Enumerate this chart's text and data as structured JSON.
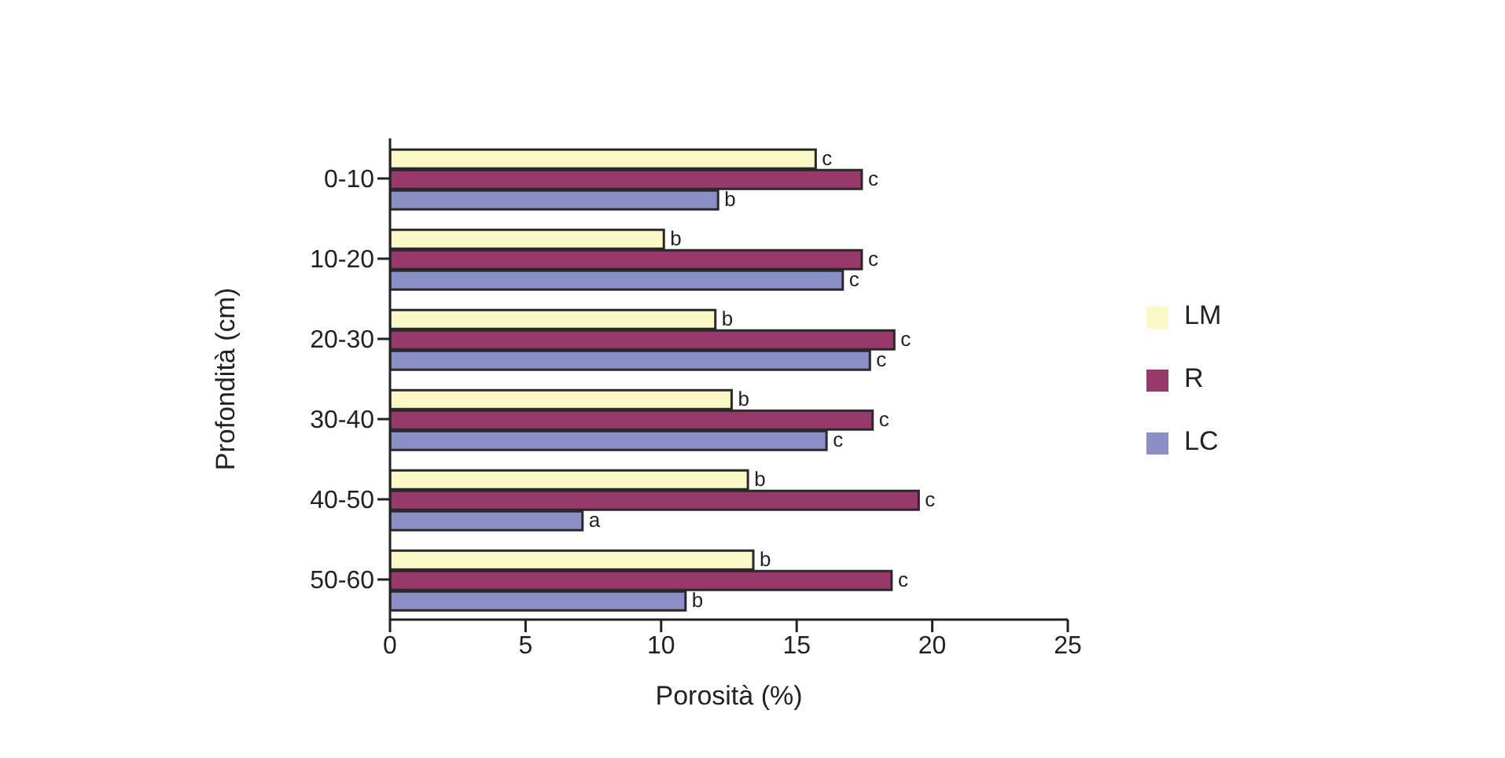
{
  "chart_data": {
    "type": "bar",
    "orientation": "horizontal",
    "xlabel": "Porosità (%)",
    "ylabel": "Profondità (cm)",
    "categories": [
      "0-10",
      "10-20",
      "20-30",
      "30-40",
      "40-50",
      "50-60"
    ],
    "series": [
      {
        "name": "LM",
        "color": "#fbf8c8",
        "values": [
          15.7,
          10.1,
          12.0,
          12.6,
          13.2,
          13.4
        ],
        "value_labels": [
          "c",
          "b",
          "b",
          "b",
          "b",
          "b"
        ]
      },
      {
        "name": "R",
        "color": "#973a6b",
        "values": [
          17.4,
          17.4,
          18.6,
          17.8,
          19.5,
          18.5
        ],
        "value_labels": [
          "c",
          "c",
          "c",
          "c",
          "c",
          "c"
        ]
      },
      {
        "name": "LC",
        "color": "#8a8fc6",
        "values": [
          12.1,
          16.7,
          17.7,
          16.1,
          7.1,
          10.9
        ],
        "value_labels": [
          "b",
          "c",
          "c",
          "c",
          "a",
          "b"
        ]
      }
    ],
    "xlim": [
      0,
      25
    ],
    "xticks": [
      0,
      5,
      10,
      15,
      20,
      25
    ],
    "grid": false,
    "legend": "right"
  }
}
